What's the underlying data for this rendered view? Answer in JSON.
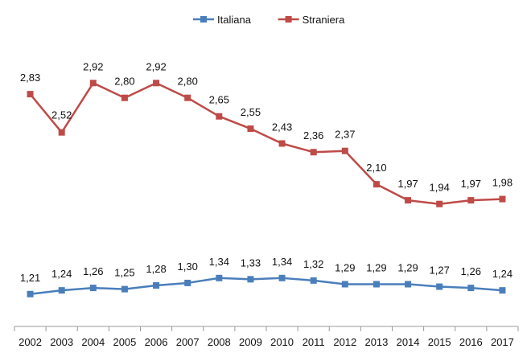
{
  "chart_data": {
    "type": "line",
    "title": "",
    "xlabel": "",
    "ylabel": "",
    "categories": [
      "2002",
      "2003",
      "2004",
      "2005",
      "2006",
      "2007",
      "2008",
      "2009",
      "2010",
      "2011",
      "2012",
      "2013",
      "2014",
      "2015",
      "2016",
      "2017"
    ],
    "ylim": [
      1.0,
      3.1
    ],
    "grid": false,
    "legend_position": "top-center",
    "series": [
      {
        "name": "Italiana",
        "color": "#4a7ebb",
        "values": [
          1.21,
          1.24,
          1.26,
          1.25,
          1.28,
          1.3,
          1.34,
          1.33,
          1.34,
          1.32,
          1.29,
          1.29,
          1.29,
          1.27,
          1.26,
          1.24
        ],
        "labels": [
          "1,21",
          "1,24",
          "1,26",
          "1,25",
          "1,28",
          "1,30",
          "1,34",
          "1,33",
          "1,34",
          "1,32",
          "1,29",
          "1,29",
          "1,29",
          "1,27",
          "1,26",
          "1,24"
        ]
      },
      {
        "name": "Straniera",
        "color": "#be4b48",
        "values": [
          2.83,
          2.52,
          2.92,
          2.8,
          2.92,
          2.8,
          2.65,
          2.55,
          2.43,
          2.36,
          2.37,
          2.1,
          1.97,
          1.94,
          1.97,
          1.98
        ],
        "labels": [
          "2,83",
          "2,52",
          "2,92",
          "2,80",
          "2,92",
          "2,80",
          "2,65",
          "2,55",
          "2,43",
          "2,36",
          "2,37",
          "2,10",
          "1,97",
          "1,94",
          "1,97",
          "1,98"
        ]
      }
    ]
  }
}
